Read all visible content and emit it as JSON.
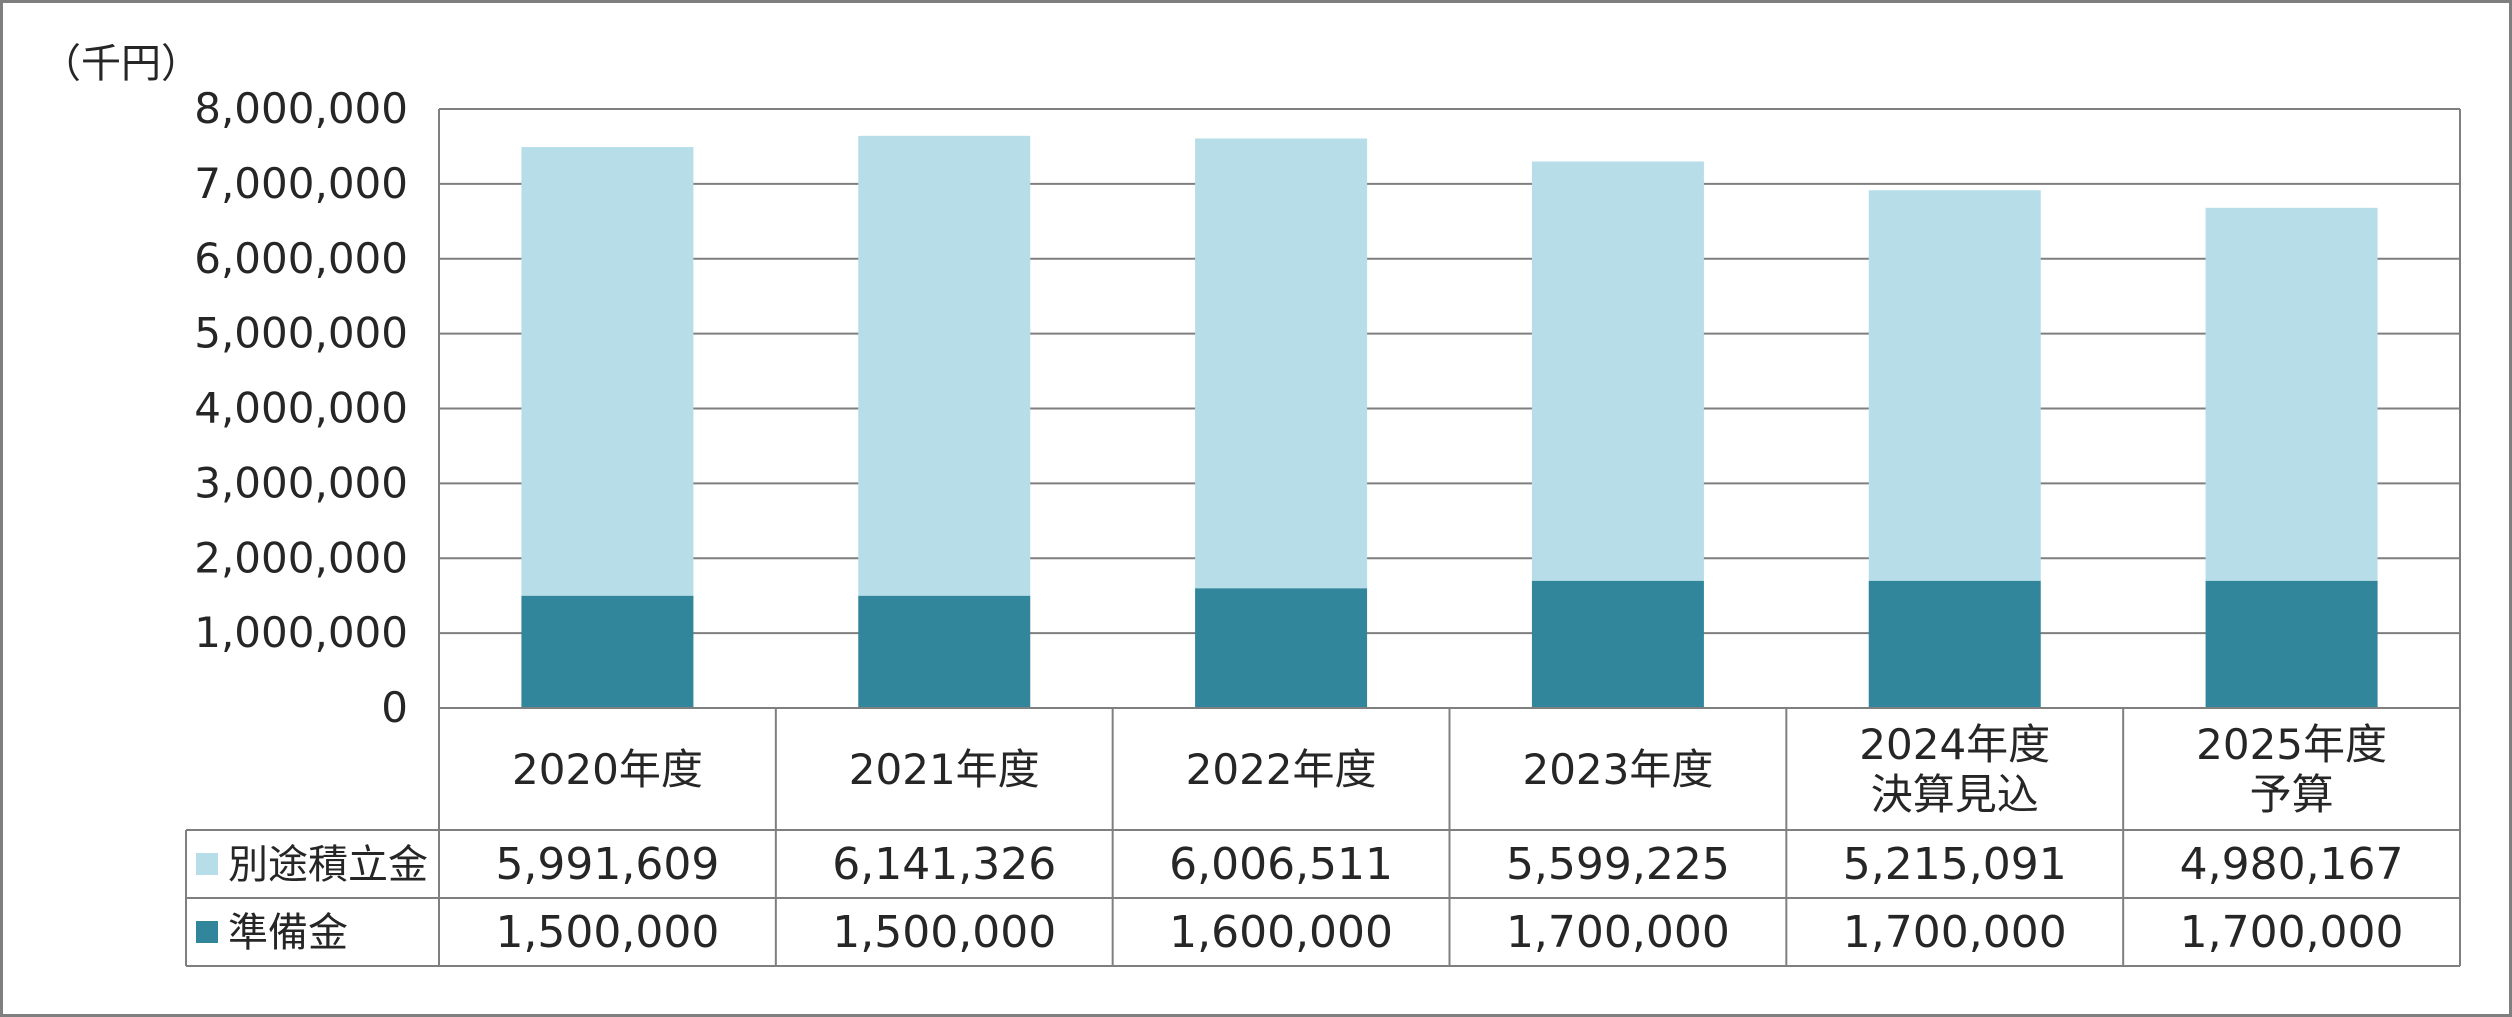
{
  "chart_data": {
    "type": "bar",
    "stacked": true,
    "unit_label": "（千円）",
    "ylim": [
      0,
      8000000
    ],
    "yticks": [
      "0",
      "1,000,000",
      "2,000,000",
      "3,000,000",
      "4,000,000",
      "5,000,000",
      "6,000,000",
      "7,000,000",
      "8,000,000"
    ],
    "grid": true,
    "legend": "table-left",
    "categories": [
      [
        "2020年度"
      ],
      [
        "2021年度"
      ],
      [
        "2022年度"
      ],
      [
        "2023年度"
      ],
      [
        "2024年度",
        "決算見込"
      ],
      [
        "2025年度",
        "予算"
      ]
    ],
    "series": [
      {
        "name": "準備金",
        "color": "#31869b",
        "values": [
          1500000,
          1500000,
          1600000,
          1700000,
          1700000,
          1700000
        ],
        "labels": [
          "1,500,000",
          "1,500,000",
          "1,600,000",
          "1,700,000",
          "1,700,000",
          "1,700,000"
        ]
      },
      {
        "name": "別途積立金",
        "color": "#b7dee8",
        "values": [
          5991609,
          6141326,
          6006511,
          5599225,
          5215091,
          4980167
        ],
        "labels": [
          "5,991,609",
          "6,141,326",
          "6,006,511",
          "5,599,225",
          "5,215,091",
          "4,980,167"
        ]
      }
    ],
    "table_order": [
      "別途積立金",
      "準備金"
    ]
  }
}
